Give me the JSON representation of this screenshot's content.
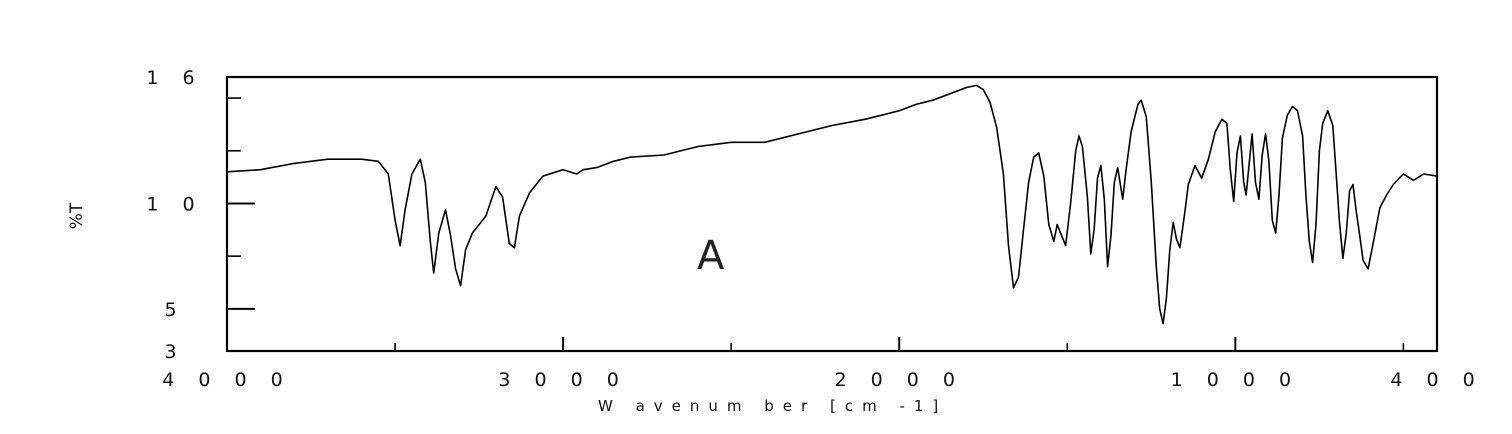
{
  "chart_data": {
    "type": "line",
    "title": "",
    "panel_label": "A",
    "xlabel": "W avenum ber [cm -1]",
    "ylabel": "%T",
    "xlim": [
      4000,
      400
    ],
    "ylim": [
      3,
      16
    ],
    "x_reversed": true,
    "grid": false,
    "x_ticks": [
      4000,
      3000,
      2000,
      1000,
      400
    ],
    "x_tick_labels": [
      "4 0 0 0",
      "3 0 0 0",
      "2 0 0 0",
      "1 0 0 0",
      "4 0 0"
    ],
    "x_minor_ticks": [
      3500,
      2500,
      1500,
      500
    ],
    "y_ticks": [
      3,
      5,
      10,
      16
    ],
    "y_tick_labels": [
      "3",
      "5",
      "1 0",
      "1 6"
    ],
    "y_minor_ticks": [
      7.5,
      12.5,
      15
    ],
    "series": [
      {
        "color": "#000000",
        "points": [
          [
            4000,
            11.5
          ],
          [
            3900,
            11.6
          ],
          [
            3800,
            11.9
          ],
          [
            3700,
            12.1
          ],
          [
            3600,
            12.1
          ],
          [
            3550,
            12.0
          ],
          [
            3520,
            11.4
          ],
          [
            3500,
            9.2
          ],
          [
            3485,
            8.0
          ],
          [
            3470,
            9.7
          ],
          [
            3450,
            11.4
          ],
          [
            3425,
            12.1
          ],
          [
            3410,
            11.0
          ],
          [
            3395,
            8.2
          ],
          [
            3385,
            6.7
          ],
          [
            3370,
            8.6
          ],
          [
            3350,
            9.7
          ],
          [
            3335,
            8.5
          ],
          [
            3320,
            6.9
          ],
          [
            3305,
            6.1
          ],
          [
            3290,
            7.8
          ],
          [
            3270,
            8.6
          ],
          [
            3230,
            9.4
          ],
          [
            3200,
            10.8
          ],
          [
            3180,
            10.3
          ],
          [
            3160,
            8.1
          ],
          [
            3145,
            7.9
          ],
          [
            3130,
            9.4
          ],
          [
            3100,
            10.5
          ],
          [
            3060,
            11.3
          ],
          [
            3000,
            11.6
          ],
          [
            2960,
            11.4
          ],
          [
            2940,
            11.6
          ],
          [
            2900,
            11.7
          ],
          [
            2850,
            12.0
          ],
          [
            2800,
            12.2
          ],
          [
            2700,
            12.3
          ],
          [
            2600,
            12.7
          ],
          [
            2500,
            12.9
          ],
          [
            2400,
            12.9
          ],
          [
            2300,
            13.3
          ],
          [
            2200,
            13.7
          ],
          [
            2100,
            14.0
          ],
          [
            2000,
            14.4
          ],
          [
            1950,
            14.7
          ],
          [
            1900,
            14.9
          ],
          [
            1850,
            15.2
          ],
          [
            1800,
            15.5
          ],
          [
            1770,
            15.6
          ],
          [
            1750,
            15.4
          ],
          [
            1730,
            14.8
          ],
          [
            1710,
            13.6
          ],
          [
            1690,
            11.4
          ],
          [
            1675,
            8.0
          ],
          [
            1660,
            6.0
          ],
          [
            1645,
            6.5
          ],
          [
            1630,
            8.8
          ],
          [
            1615,
            11.0
          ],
          [
            1600,
            12.2
          ],
          [
            1585,
            12.4
          ],
          [
            1570,
            11.3
          ],
          [
            1555,
            9.0
          ],
          [
            1540,
            8.2
          ],
          [
            1530,
            9.0
          ],
          [
            1520,
            8.6
          ],
          [
            1505,
            8.0
          ],
          [
            1490,
            10.0
          ],
          [
            1475,
            12.5
          ],
          [
            1465,
            13.2
          ],
          [
            1455,
            12.7
          ],
          [
            1440,
            10.3
          ],
          [
            1430,
            7.6
          ],
          [
            1420,
            8.8
          ],
          [
            1410,
            11.2
          ],
          [
            1400,
            11.8
          ],
          [
            1390,
            10.2
          ],
          [
            1380,
            7.0
          ],
          [
            1370,
            8.5
          ],
          [
            1360,
            11.0
          ],
          [
            1350,
            11.7
          ],
          [
            1335,
            10.2
          ],
          [
            1325,
            11.6
          ],
          [
            1310,
            13.4
          ],
          [
            1290,
            14.7
          ],
          [
            1280,
            14.9
          ],
          [
            1265,
            14.1
          ],
          [
            1250,
            11.0
          ],
          [
            1235,
            7.0
          ],
          [
            1225,
            5.0
          ],
          [
            1215,
            4.3
          ],
          [
            1205,
            5.5
          ],
          [
            1195,
            7.8
          ],
          [
            1185,
            9.1
          ],
          [
            1175,
            8.3
          ],
          [
            1165,
            7.9
          ],
          [
            1150,
            9.6
          ],
          [
            1140,
            10.9
          ],
          [
            1120,
            11.8
          ],
          [
            1100,
            11.2
          ],
          [
            1080,
            12.1
          ],
          [
            1060,
            13.4
          ],
          [
            1040,
            14.0
          ],
          [
            1025,
            13.8
          ],
          [
            1015,
            11.6
          ],
          [
            1005,
            10.1
          ],
          [
            995,
            12.4
          ],
          [
            985,
            13.2
          ],
          [
            975,
            11.0
          ],
          [
            968,
            10.4
          ],
          [
            960,
            11.7
          ],
          [
            950,
            13.3
          ],
          [
            940,
            11.0
          ],
          [
            930,
            10.2
          ],
          [
            920,
            12.3
          ],
          [
            910,
            13.3
          ],
          [
            900,
            12.0
          ],
          [
            890,
            9.2
          ],
          [
            880,
            8.6
          ],
          [
            870,
            10.4
          ],
          [
            860,
            13.1
          ],
          [
            845,
            14.2
          ],
          [
            830,
            14.6
          ],
          [
            815,
            14.4
          ],
          [
            800,
            13.2
          ],
          [
            790,
            10.4
          ],
          [
            780,
            8.2
          ],
          [
            770,
            7.2
          ],
          [
            760,
            9.0
          ],
          [
            750,
            12.5
          ],
          [
            740,
            13.8
          ],
          [
            725,
            14.4
          ],
          [
            710,
            13.7
          ],
          [
            700,
            11.4
          ],
          [
            690,
            9.1
          ],
          [
            680,
            7.4
          ],
          [
            670,
            8.6
          ],
          [
            660,
            10.6
          ],
          [
            650,
            10.9
          ],
          [
            640,
            9.6
          ],
          [
            630,
            8.5
          ],
          [
            620,
            7.3
          ],
          [
            605,
            6.9
          ],
          [
            590,
            8.1
          ],
          [
            570,
            9.8
          ],
          [
            550,
            10.4
          ],
          [
            530,
            10.9
          ],
          [
            500,
            11.4
          ],
          [
            470,
            11.1
          ],
          [
            440,
            11.4
          ],
          [
            400,
            11.3
          ]
        ]
      }
    ]
  }
}
